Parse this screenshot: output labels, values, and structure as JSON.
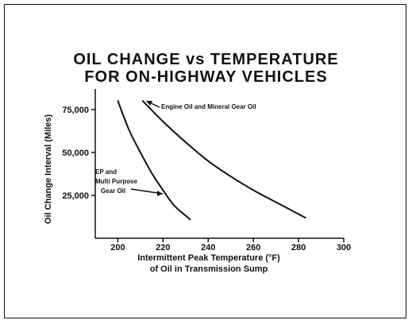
{
  "chart_data": {
    "type": "line",
    "title_line1": "OIL CHANGE vs TEMPERATURE",
    "title_line2": "FOR ON-HIGHWAY VEHICLES",
    "xlabel_line1": "Intermittent Peak Temperature (°F)",
    "xlabel_line2": "of Oil in Transmission Sump",
    "ylabel": "Oil Change Interval (Miles)",
    "xlim": [
      190,
      300
    ],
    "ylim": [
      0,
      87000
    ],
    "x_ticks": [
      {
        "value": 200,
        "label": "200"
      },
      {
        "value": 220,
        "label": "220"
      },
      {
        "value": 240,
        "label": "240"
      },
      {
        "value": 260,
        "label": "260"
      },
      {
        "value": 280,
        "label": "280"
      },
      {
        "value": 300,
        "label": "300"
      }
    ],
    "y_ticks": [
      {
        "value": 25000,
        "label": "25,000"
      },
      {
        "value": 50000,
        "label": "50,000"
      },
      {
        "value": 75000,
        "label": "75,000"
      }
    ],
    "grid": false,
    "series": [
      {
        "name_lines": [
          "EP and",
          "Multi Purpose",
          "Gear Oil"
        ],
        "x": [
          200,
          205,
          210,
          215,
          220,
          225,
          232
        ],
        "y": [
          80000,
          63000,
          50000,
          38000,
          28000,
          19000,
          11000
        ]
      },
      {
        "name_lines": [
          "Engine Oil and Mineral Gear Oil"
        ],
        "x": [
          211,
          220,
          230,
          240,
          250,
          260,
          270,
          283
        ],
        "y": [
          80000,
          68000,
          56000,
          45000,
          36000,
          28000,
          21000,
          12000
        ]
      }
    ]
  }
}
